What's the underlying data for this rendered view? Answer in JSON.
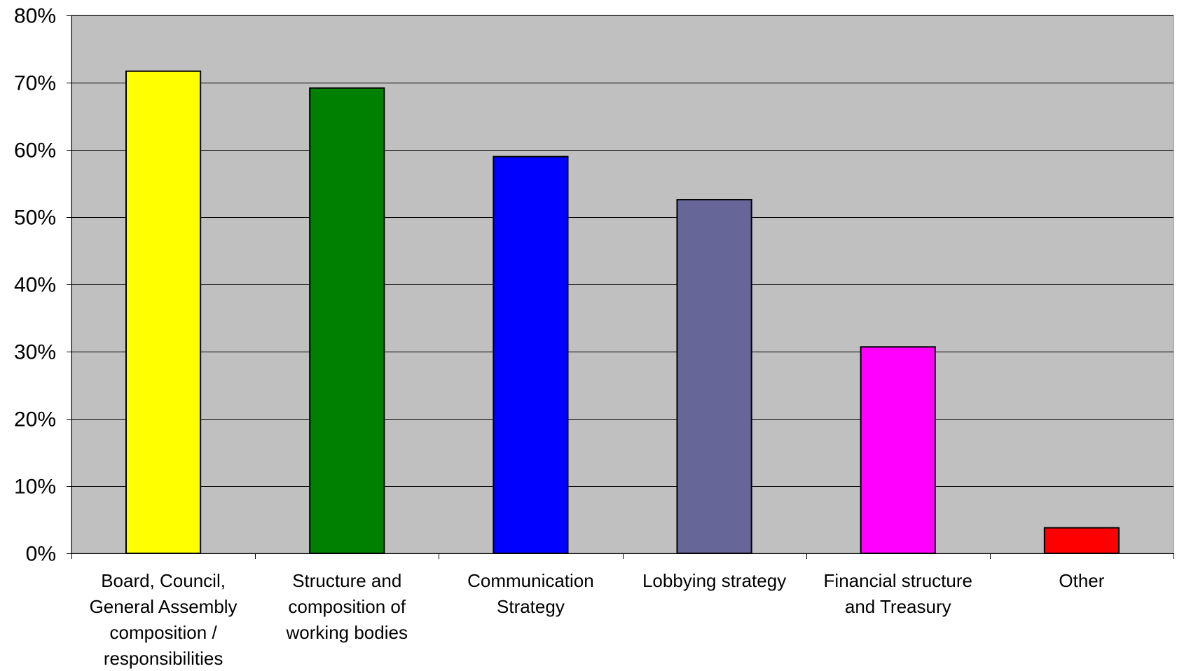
{
  "chart_data": {
    "type": "bar",
    "title": "",
    "xlabel": "",
    "ylabel": "",
    "ylim": [
      0,
      0.8
    ],
    "y_ticks": [
      0,
      0.1,
      0.2,
      0.3,
      0.4,
      0.5,
      0.6,
      0.7,
      0.8
    ],
    "y_tick_labels": [
      "0%",
      "10%",
      "20%",
      "30%",
      "40%",
      "50%",
      "60%",
      "70%",
      "80%"
    ],
    "grid": true,
    "legend": "none",
    "plot_background": "#c0c0c0",
    "categories": [
      [
        "Board, Council,",
        "General Assembly",
        "composition /",
        "responsibilities"
      ],
      [
        "Structure and",
        "composition of",
        "working bodies"
      ],
      [
        "Communication",
        "Strategy"
      ],
      [
        "Lobbying strategy"
      ],
      [
        "Financial structure",
        "and Treasury"
      ],
      [
        "Other"
      ]
    ],
    "values": [
      0.717,
      0.692,
      0.59,
      0.526,
      0.307,
      0.038
    ],
    "colors": [
      "#ffff00",
      "#008000",
      "#0000ff",
      "#666699",
      "#ff00ff",
      "#ff0000"
    ]
  }
}
